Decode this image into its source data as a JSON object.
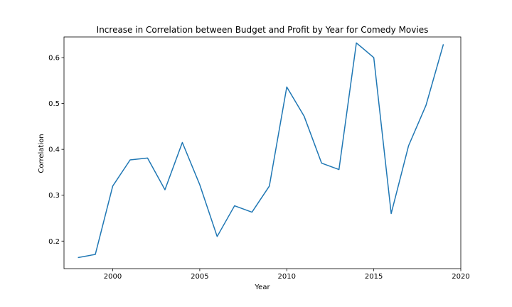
{
  "chart_data": {
    "type": "line",
    "title": "Increase in Correlation between Budget and Profit by Year for Comedy Movies",
    "xlabel": "Year",
    "ylabel": "Correlation",
    "xlim": [
      1997.2,
      2020.0
    ],
    "ylim": [
      0.14,
      0.645
    ],
    "xticks": [
      2000,
      2005,
      2010,
      2015,
      2020
    ],
    "yticks": [
      0.2,
      0.3,
      0.4,
      0.5,
      0.6
    ],
    "grid": false,
    "x": [
      1998,
      1999,
      2000,
      2001,
      2002,
      2003,
      2004,
      2005,
      2006,
      2007,
      2008,
      2009,
      2010,
      2011,
      2012,
      2013,
      2014,
      2015,
      2016,
      2017,
      2018,
      2019
    ],
    "series": [
      {
        "color": "#1f77b4",
        "values": [
          0.164,
          0.171,
          0.32,
          0.377,
          0.381,
          0.312,
          0.415,
          0.323,
          0.21,
          0.277,
          0.263,
          0.32,
          0.536,
          0.472,
          0.37,
          0.356,
          0.632,
          0.6,
          0.26,
          0.408,
          0.496,
          0.629
        ]
      }
    ]
  }
}
